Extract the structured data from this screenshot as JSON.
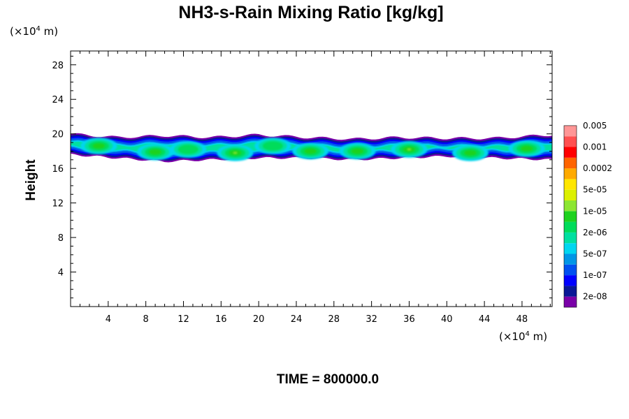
{
  "chart_data": {
    "type": "heatmap",
    "title": "NH3-s-Rain Mixing Ratio [kg/kg]",
    "ylabel": "Height",
    "x_unit": {
      "prefix": "(×10",
      "exponent": "4",
      "suffix": " m)"
    },
    "y_unit": {
      "prefix": "(×10",
      "exponent": "4",
      "suffix": " m)"
    },
    "xlim": [
      0,
      51.2
    ],
    "ylim": [
      0,
      29.6
    ],
    "x_ticks": [
      4,
      8,
      12,
      16,
      20,
      24,
      28,
      32,
      36,
      40,
      44,
      48
    ],
    "y_ticks": [
      4,
      8,
      12,
      16,
      20,
      24,
      28
    ],
    "footer": "TIME = 800000.0",
    "colorbar": {
      "colors": [
        "#7a00a8",
        "#0a1896",
        "#0000ff",
        "#0050f0",
        "#0096e6",
        "#00d6f0",
        "#00e0a0",
        "#00dc5a",
        "#1ed21e",
        "#8ce632",
        "#dcf000",
        "#ffe600",
        "#ffaa00",
        "#ff6400",
        "#ff0000",
        "#ff5050",
        "#ff9696"
      ],
      "labels": [
        "2e-08",
        "1e-07",
        "5e-07",
        "2e-06",
        "1e-05",
        "5e-05",
        "0.0002",
        "0.001",
        "0.005"
      ]
    },
    "field": {
      "layer_base_km": [
        17.6,
        17.2,
        16.8,
        17.0,
        17.2,
        17.2,
        17.0,
        17.2,
        17.4,
        17.2,
        17.0
      ],
      "layer_top_km": [
        20.0,
        19.6,
        19.8,
        19.6,
        19.9,
        19.6,
        19.4,
        19.6,
        19.5,
        19.5,
        19.9
      ],
      "profile_x": [
        0,
        5,
        10,
        15,
        20,
        25,
        30,
        35,
        40,
        45,
        51.2
      ],
      "cells": [
        {
          "x": 3,
          "y": 18.6,
          "level": 8
        },
        {
          "x": 9,
          "y": 17.9,
          "level": 8
        },
        {
          "x": 12.5,
          "y": 18.2,
          "level": 7
        },
        {
          "x": 17.5,
          "y": 17.8,
          "level": 9
        },
        {
          "x": 21.5,
          "y": 18.6,
          "level": 7
        },
        {
          "x": 25.5,
          "y": 18.0,
          "level": 8
        },
        {
          "x": 30.5,
          "y": 18.0,
          "level": 8
        },
        {
          "x": 36,
          "y": 18.2,
          "level": 9
        },
        {
          "x": 42.5,
          "y": 17.8,
          "level": 8
        },
        {
          "x": 48.5,
          "y": 18.3,
          "level": 8
        }
      ]
    }
  }
}
